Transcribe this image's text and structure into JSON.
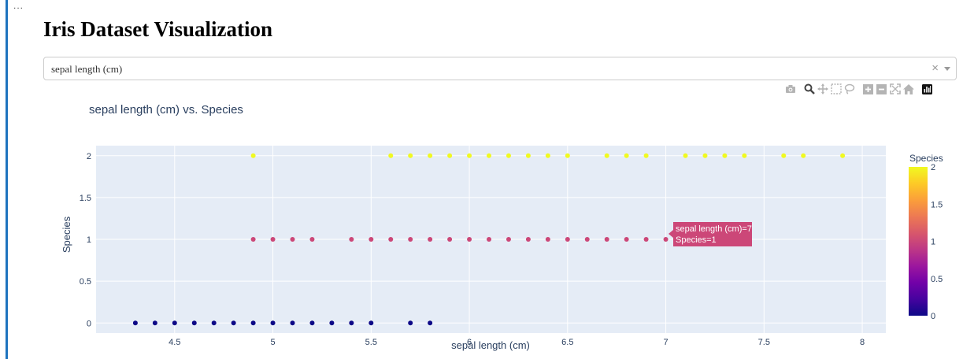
{
  "page": {
    "menu_glyph": "...",
    "title": "Iris Dataset Visualization"
  },
  "dropdown": {
    "selected_value": "sepal length (cm)",
    "clear_symbol": "×"
  },
  "modebar": {
    "icons": [
      "camera-icon",
      "zoom-icon",
      "pan-icon",
      "box-select-icon",
      "lasso-icon",
      "zoom-in-icon",
      "zoom-out-icon",
      "autoscale-icon",
      "home-icon",
      "plotly-logo-icon"
    ]
  },
  "tooltip": {
    "line1": "sepal length (cm)=7",
    "line2": "Species=1",
    "color": "#cc4778"
  },
  "colors": {
    "plot_bg": "#e5ecf6",
    "grid": "#ffffff",
    "text": "#2a3f5f",
    "tooltip_bg": "#cc4778"
  },
  "chart_data": {
    "type": "scatter",
    "title": "sepal length (cm) vs. Species",
    "xlabel": "sepal length (cm)",
    "ylabel": "Species",
    "xlim": [
      4.1,
      8.12
    ],
    "ylim": [
      -0.12,
      2.12
    ],
    "xticks": [
      4.5,
      5,
      5.5,
      6,
      6.5,
      7,
      7.5,
      8
    ],
    "xtick_labels": [
      "4.5",
      "5",
      "5.5",
      "6",
      "6.5",
      "7",
      "7.5",
      "8"
    ],
    "yticks": [
      0,
      0.5,
      1,
      1.5,
      2
    ],
    "ytick_labels": [
      "0",
      "0.5",
      "1",
      "1.5",
      "2"
    ],
    "grid": true,
    "colorscale": "plasma",
    "colorbar": {
      "title": "Species",
      "range": [
        0,
        2
      ],
      "ticks": [
        0,
        0.5,
        1,
        1.5,
        2
      ],
      "tick_labels": [
        "0",
        "0.5",
        "1",
        "1.5",
        "2"
      ],
      "stops": [
        "#0d0887",
        "#46039f",
        "#7201a8",
        "#9c179e",
        "#bd3786",
        "#d8576b",
        "#ed7953",
        "#fb9f3a",
        "#fdca26",
        "#f0f921"
      ]
    },
    "series": [
      {
        "y": 0,
        "color": "#0d0887",
        "x": [
          4.3,
          4.4,
          4.5,
          4.6,
          4.7,
          4.8,
          4.9,
          5.0,
          5.1,
          5.2,
          5.3,
          5.4,
          5.5,
          5.7,
          5.8
        ]
      },
      {
        "y": 1,
        "color": "#cc4778",
        "x": [
          4.9,
          5.0,
          5.1,
          5.2,
          5.4,
          5.5,
          5.6,
          5.7,
          5.8,
          5.9,
          6.0,
          6.1,
          6.2,
          6.3,
          6.4,
          6.5,
          6.6,
          6.7,
          6.8,
          6.9,
          7.0
        ]
      },
      {
        "y": 2,
        "color": "#f0f921",
        "x": [
          4.9,
          5.6,
          5.7,
          5.8,
          5.9,
          6.0,
          6.1,
          6.2,
          6.3,
          6.4,
          6.5,
          6.7,
          6.8,
          6.9,
          7.1,
          7.2,
          7.3,
          7.4,
          7.6,
          7.7,
          7.9
        ]
      }
    ]
  }
}
